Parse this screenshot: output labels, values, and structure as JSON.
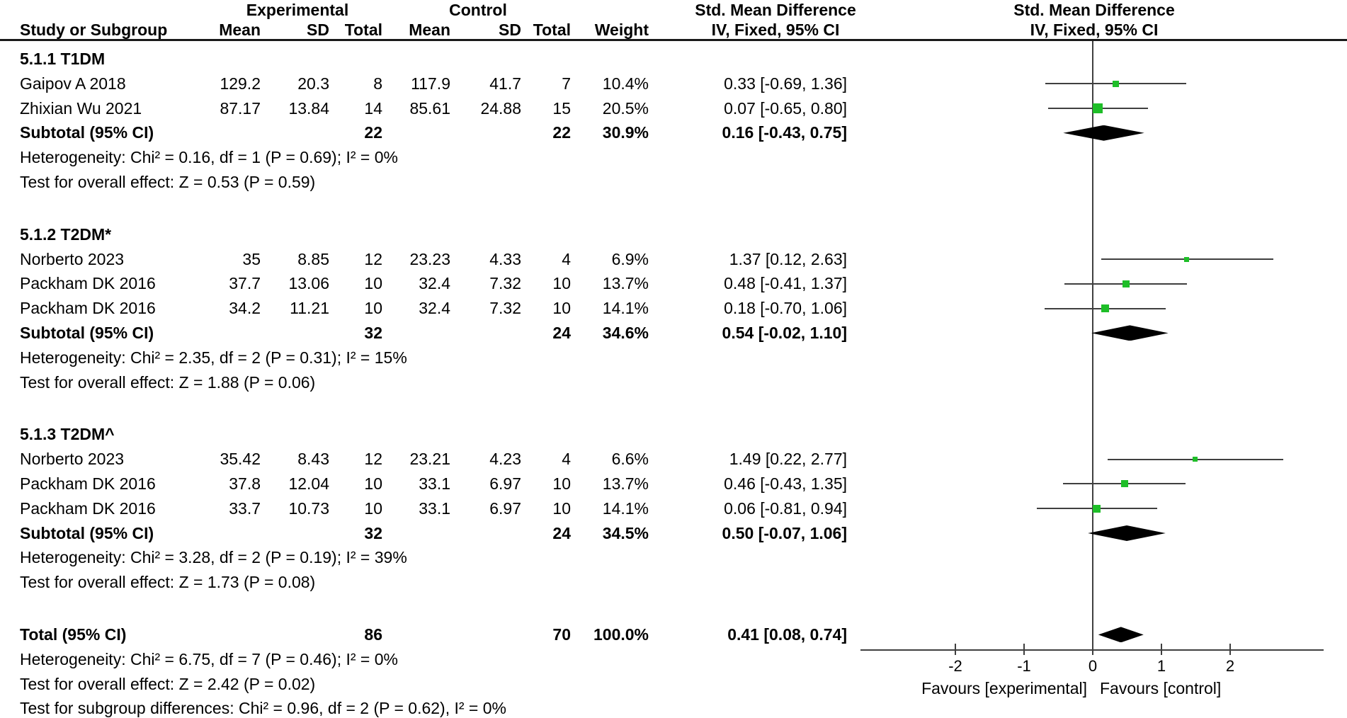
{
  "header": {
    "group_experimental": "Experimental",
    "group_control": "Control",
    "effect_col_title": "Std. Mean Difference",
    "effect_col_sub": "IV, Fixed, 95% CI",
    "plot_col_title": "Std. Mean Difference",
    "plot_col_sub": "IV, Fixed, 95% CI",
    "study_col": "Study or Subgroup",
    "mean_col": "Mean",
    "sd_col": "SD",
    "total_col": "Total",
    "weight_col": "Weight"
  },
  "axis": {
    "ticks": [
      -2,
      -1,
      0,
      1,
      2
    ],
    "favours_left": "Favours [experimental]",
    "favours_right": "Favours [control]"
  },
  "colors": {
    "marker": "#1ebe28",
    "ci_line": "#3f3f3f",
    "diamond": "#000000",
    "text": "#000000"
  },
  "chart_data": {
    "type": "forest",
    "effect_measure": "Std. Mean Difference",
    "method": "IV, Fixed, 95% CI",
    "x_axis": {
      "min": -3.4,
      "max": 3.4,
      "tick_values": [
        -2,
        -1,
        0,
        1,
        2
      ]
    },
    "groups": [
      {
        "label": "5.1.1 T1DM",
        "studies": [
          {
            "name": "Gaipov A 2018",
            "mean_e": "129.2",
            "sd_e": "20.3",
            "n_e": "8",
            "mean_c": "117.9",
            "sd_c": "41.7",
            "n_c": "7",
            "weight": "10.4%",
            "weight_value": 10.4,
            "est": 0.33,
            "lo": -0.69,
            "hi": 1.36,
            "ci_text": "0.33 [-0.69, 1.36]"
          },
          {
            "name": "Zhixian Wu 2021",
            "mean_e": "87.17",
            "sd_e": "13.84",
            "n_e": "14",
            "mean_c": "85.61",
            "sd_c": "24.88",
            "n_c": "15",
            "weight": "20.5%",
            "weight_value": 20.5,
            "est": 0.07,
            "lo": -0.65,
            "hi": 0.8,
            "ci_text": "0.07 [-0.65, 0.80]"
          }
        ],
        "subtotal": {
          "label": "Subtotal (95% CI)",
          "n_e": "22",
          "n_c": "22",
          "weight": "30.9%",
          "est": 0.16,
          "lo": -0.43,
          "hi": 0.75,
          "ci_text": "0.16 [-0.43, 0.75]"
        },
        "heterogeneity": "Heterogeneity: Chi² = 0.16, df = 1 (P = 0.69); I² = 0%",
        "overall_effect": "Test for overall effect: Z = 0.53 (P = 0.59)"
      },
      {
        "label": "5.1.2 T2DM*",
        "studies": [
          {
            "name": "Norberto 2023",
            "mean_e": "35",
            "sd_e": "8.85",
            "n_e": "12",
            "mean_c": "23.23",
            "sd_c": "4.33",
            "n_c": "4",
            "weight": "6.9%",
            "weight_value": 6.9,
            "est": 1.37,
            "lo": 0.12,
            "hi": 2.63,
            "ci_text": "1.37 [0.12, 2.63]"
          },
          {
            "name": "Packham DK 2016",
            "mean_e": "37.7",
            "sd_e": "13.06",
            "n_e": "10",
            "mean_c": "32.4",
            "sd_c": "7.32",
            "n_c": "10",
            "weight": "13.7%",
            "weight_value": 13.7,
            "est": 0.48,
            "lo": -0.41,
            "hi": 1.37,
            "ci_text": "0.48 [-0.41, 1.37]"
          },
          {
            "name": "Packham DK 2016",
            "mean_e": "34.2",
            "sd_e": "11.21",
            "n_e": "10",
            "mean_c": "32.4",
            "sd_c": "7.32",
            "n_c": "10",
            "weight": "14.1%",
            "weight_value": 14.1,
            "est": 0.18,
            "lo": -0.7,
            "hi": 1.06,
            "ci_text": "0.18 [-0.70, 1.06]"
          }
        ],
        "subtotal": {
          "label": "Subtotal (95% CI)",
          "n_e": "32",
          "n_c": "24",
          "weight": "34.6%",
          "est": 0.54,
          "lo": -0.02,
          "hi": 1.1,
          "ci_text": "0.54 [-0.02, 1.10]"
        },
        "heterogeneity": "Heterogeneity: Chi² = 2.35, df = 2 (P = 0.31); I² = 15%",
        "overall_effect": "Test for overall effect: Z = 1.88 (P = 0.06)"
      },
      {
        "label": "5.1.3 T2DM^",
        "studies": [
          {
            "name": "Norberto 2023",
            "mean_e": "35.42",
            "sd_e": "8.43",
            "n_e": "12",
            "mean_c": "23.21",
            "sd_c": "4.23",
            "n_c": "4",
            "weight": "6.6%",
            "weight_value": 6.6,
            "est": 1.49,
            "lo": 0.22,
            "hi": 2.77,
            "ci_text": "1.49 [0.22, 2.77]"
          },
          {
            "name": "Packham DK 2016",
            "mean_e": "37.8",
            "sd_e": "12.04",
            "n_e": "10",
            "mean_c": "33.1",
            "sd_c": "6.97",
            "n_c": "10",
            "weight": "13.7%",
            "weight_value": 13.7,
            "est": 0.46,
            "lo": -0.43,
            "hi": 1.35,
            "ci_text": "0.46 [-0.43, 1.35]"
          },
          {
            "name": "Packham DK 2016",
            "mean_e": "33.7",
            "sd_e": "10.73",
            "n_e": "10",
            "mean_c": "33.1",
            "sd_c": "6.97",
            "n_c": "10",
            "weight": "14.1%",
            "weight_value": 14.1,
            "est": 0.06,
            "lo": -0.81,
            "hi": 0.94,
            "ci_text": "0.06 [-0.81, 0.94]"
          }
        ],
        "subtotal": {
          "label": "Subtotal (95% CI)",
          "n_e": "32",
          "n_c": "24",
          "weight": "34.5%",
          "est": 0.5,
          "lo": -0.07,
          "hi": 1.06,
          "ci_text": "0.50 [-0.07, 1.06]"
        },
        "heterogeneity": "Heterogeneity: Chi² = 3.28, df = 2 (P = 0.19); I² = 39%",
        "overall_effect": "Test for overall effect: Z = 1.73 (P = 0.08)"
      }
    ],
    "total": {
      "label": "Total (95% CI)",
      "n_e": "86",
      "n_c": "70",
      "weight": "100.0%",
      "est": 0.41,
      "lo": 0.08,
      "hi": 0.74,
      "ci_text": "0.41 [0.08, 0.74]"
    },
    "footers": [
      "Heterogeneity: Chi² = 6.75, df = 7 (P = 0.46); I² = 0%",
      "Test for overall effect: Z = 2.42 (P = 0.02)",
      "Test for subgroup differences: Chi² = 0.96, df = 2 (P = 0.62), I² = 0%"
    ]
  }
}
